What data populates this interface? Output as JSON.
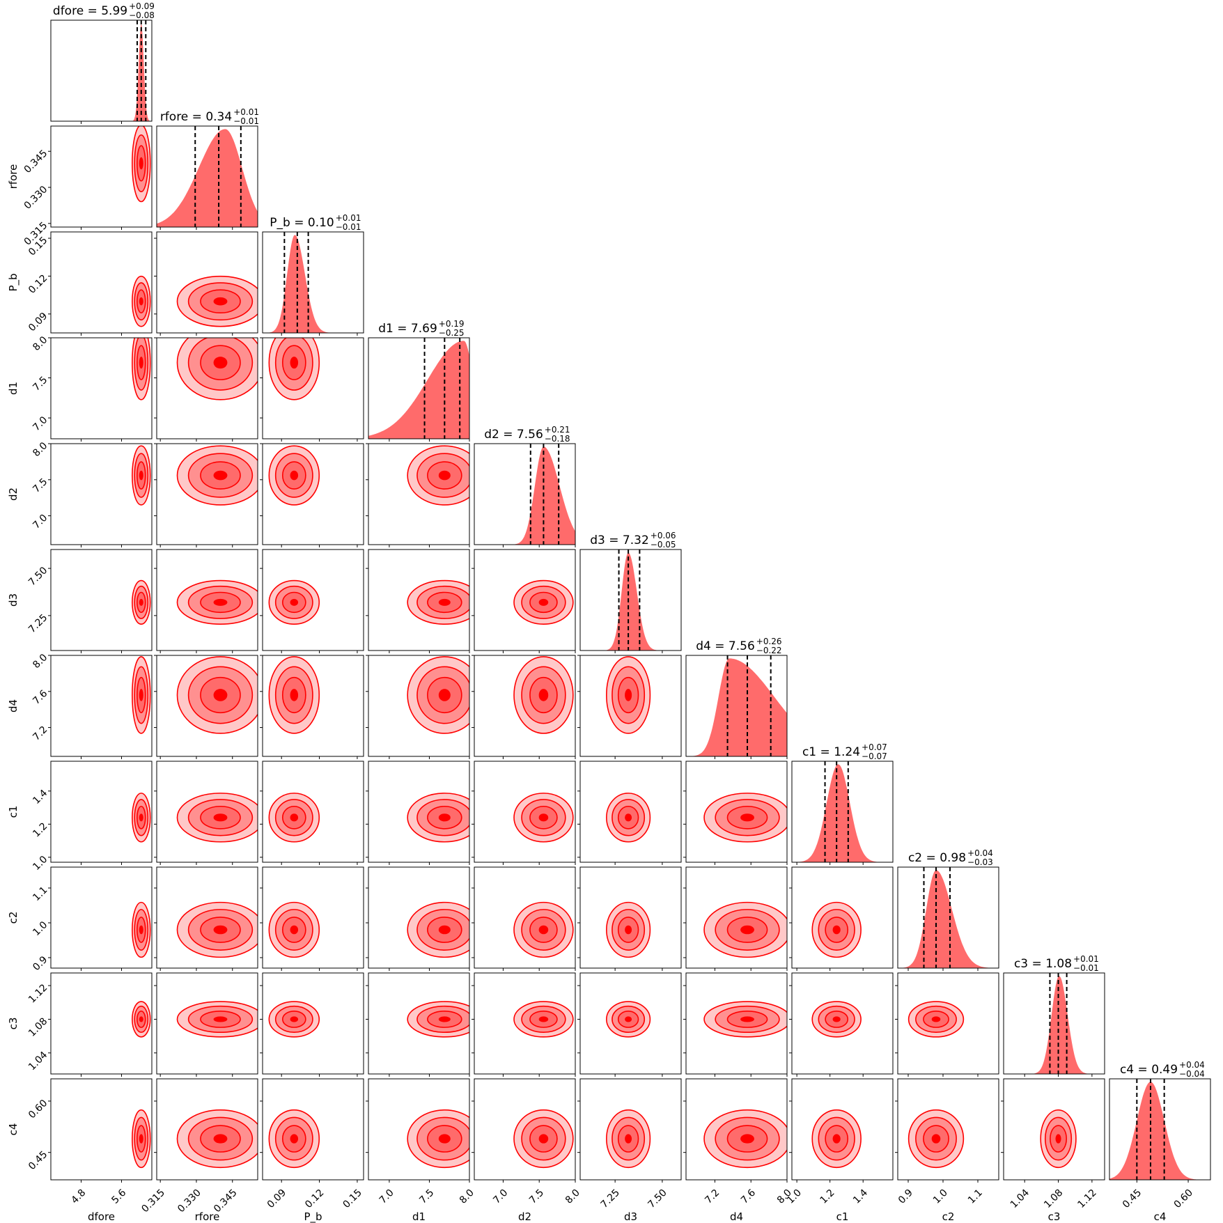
{
  "chart_data": {
    "type": "corner",
    "params": [
      "dfore",
      "rfore",
      "P_b",
      "d1",
      "d2",
      "d3",
      "d4",
      "c1",
      "c2",
      "c3",
      "c4"
    ],
    "xlabels": [
      "dfore",
      "rfore",
      "P_b",
      "d1",
      "d2",
      "d3",
      "d4",
      "c1",
      "c2",
      "c3",
      "c4"
    ],
    "ylabels": [
      "",
      "rfore",
      "P_b",
      "d1",
      "d2",
      "d3",
      "d4",
      "c1",
      "c2",
      "c3",
      "c4"
    ],
    "ranges": [
      [
        4.2,
        6.2
      ],
      [
        0.3135,
        0.3555
      ],
      [
        0.075,
        0.155
      ],
      [
        6.74,
        8.0
      ],
      [
        6.6,
        8.0
      ],
      [
        7.065,
        7.6
      ],
      [
        6.88,
        8.0
      ],
      [
        0.97,
        1.58
      ],
      [
        0.87,
        1.16
      ],
      [
        1.015,
        1.135
      ],
      [
        0.37,
        0.665
      ]
    ],
    "ticks": [
      [
        4.8,
        5.6
      ],
      [
        0.315,
        0.33,
        0.345
      ],
      [
        0.09,
        0.12,
        0.15
      ],
      [
        7.0,
        7.5,
        8.0
      ],
      [
        7.0,
        7.5,
        8.0
      ],
      [
        7.25,
        7.5
      ],
      [
        7.2,
        7.6,
        8.0
      ],
      [
        1.0,
        1.2,
        1.4
      ],
      [
        0.9,
        1.0,
        1.1
      ],
      [
        1.04,
        1.08,
        1.12
      ],
      [
        0.45,
        0.6
      ]
    ],
    "tick_labels": [
      [
        "4.8",
        "5.6"
      ],
      [
        "0.315",
        "0.330",
        "0.345"
      ],
      [
        "0.09",
        "0.12",
        "0.15"
      ],
      [
        "7.0",
        "7.5",
        "8.0"
      ],
      [
        "7.0",
        "7.5",
        "8.0"
      ],
      [
        "7.25",
        "7.50"
      ],
      [
        "7.2",
        "7.6",
        "8.0"
      ],
      [
        "1.0",
        "1.2",
        "1.4"
      ],
      [
        "0.9",
        "1.0",
        "1.1"
      ],
      [
        "1.04",
        "1.08",
        "1.12"
      ],
      [
        "0.45",
        "0.60"
      ]
    ],
    "medians": [
      5.99,
      0.34,
      0.1,
      7.69,
      7.56,
      7.32,
      7.56,
      1.24,
      0.98,
      1.08,
      0.49
    ],
    "median_labels": [
      "5.99",
      "0.34",
      "0.10",
      "7.69",
      "7.56",
      "7.32",
      "7.56",
      "1.24",
      "0.98",
      "1.08",
      "0.49"
    ],
    "upper_err": [
      "+0.09",
      "+0.01",
      "+0.01",
      "+0.19",
      "+0.21",
      "+0.06",
      "+0.26",
      "+0.07",
      "+0.04",
      "+0.01",
      "+0.04"
    ],
    "lower_err": [
      "−0.08",
      "−0.01",
      "−0.01",
      "−0.25",
      "−0.18",
      "−0.05",
      "−0.22",
      "−0.07",
      "−0.03",
      "−0.01",
      "−0.04"
    ],
    "quantiles": [
      [
        5.91,
        5.99,
        6.08
      ],
      [
        0.3295,
        0.3393,
        0.3485
      ],
      [
        0.0923,
        0.1025,
        0.1112
      ],
      [
        7.44,
        7.69,
        7.88
      ],
      [
        7.38,
        7.56,
        7.77
      ],
      [
        7.27,
        7.32,
        7.38
      ],
      [
        7.34,
        7.56,
        7.82
      ],
      [
        1.17,
        1.24,
        1.31
      ],
      [
        0.945,
        0.98,
        1.02
      ],
      [
        1.07,
        1.08,
        1.09
      ],
      [
        0.45,
        0.49,
        0.53
      ]
    ],
    "peaks": [
      5.99,
      0.342,
      0.1005,
      7.93,
      7.56,
      7.32,
      7.36,
      1.25,
      0.98,
      1.081,
      0.49
    ],
    "spreads": [
      [
        0.05,
        0.05
      ],
      [
        0.011,
        0.007
      ],
      [
        0.006,
        0.008
      ],
      [
        0.45,
        0.12
      ],
      [
        0.12,
        0.22
      ],
      [
        0.035,
        0.045
      ],
      [
        0.12,
        0.5
      ],
      [
        0.07,
        0.07
      ],
      [
        0.028,
        0.045
      ],
      [
        0.009,
        0.01
      ],
      [
        0.04,
        0.04
      ]
    ],
    "colors": {
      "fill": "#ff6b6b",
      "contour": "#ff0000",
      "inner": "#ff0000",
      "light": "#ffc8c8",
      "mid": "#ff9090",
      "frame": "#000000",
      "quantile_line": "#000000"
    }
  }
}
